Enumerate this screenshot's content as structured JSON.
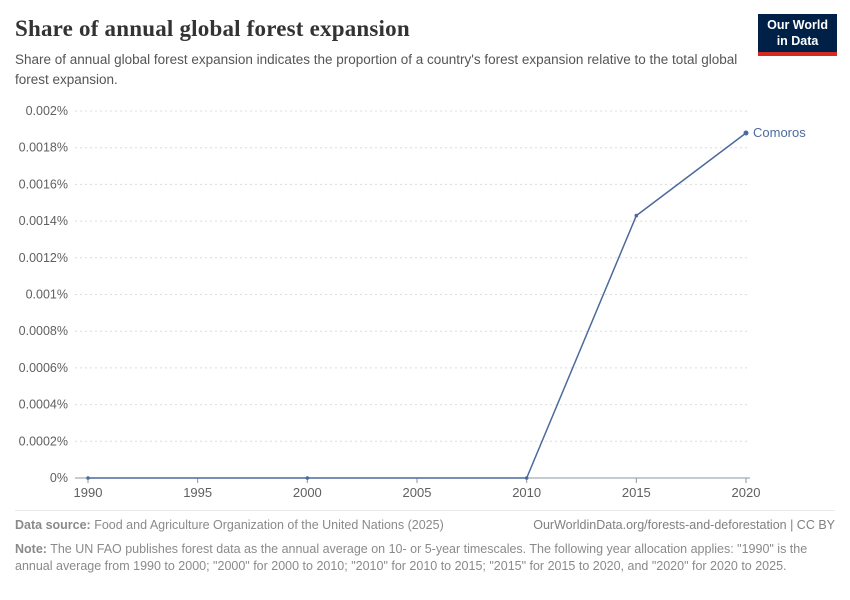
{
  "logo": {
    "line1": "Our World",
    "line2": "in Data",
    "navy_color": "#002147",
    "red_color": "#d42a20"
  },
  "header": {
    "title": "Share of annual global forest expansion",
    "subtitle": "Share of annual global forest expansion indicates the proportion of a country's forest expansion relative to the total global forest expansion."
  },
  "chart_data": {
    "type": "line",
    "title": "Share of annual global forest expansion",
    "xlabel": "",
    "ylabel": "",
    "xlim": [
      1990,
      2020
    ],
    "ylim": [
      0,
      0.002
    ],
    "grid": true,
    "grid_style": "dashed",
    "grid_color": "#dcdcdc",
    "axis_color": "#8b97a6",
    "legend_position": "end-of-line",
    "x_ticks": [
      1990,
      1995,
      2000,
      2005,
      2010,
      2015,
      2020
    ],
    "y_ticks": [
      {
        "value": 0,
        "label": "0%"
      },
      {
        "value": 0.0002,
        "label": "0.0002%"
      },
      {
        "value": 0.0004,
        "label": "0.0004%"
      },
      {
        "value": 0.0006,
        "label": "0.0006%"
      },
      {
        "value": 0.0008,
        "label": "0.0008%"
      },
      {
        "value": 0.001,
        "label": "0.001%"
      },
      {
        "value": 0.0012,
        "label": "0.0012%"
      },
      {
        "value": 0.0014,
        "label": "0.0014%"
      },
      {
        "value": 0.0016,
        "label": "0.0016%"
      },
      {
        "value": 0.0018,
        "label": "0.0018%"
      },
      {
        "value": 0.002,
        "label": "0.002%"
      }
    ],
    "series": [
      {
        "name": "Comoros",
        "color": "#4c6a9c",
        "x": [
          1990,
          2000,
          2010,
          2015,
          2020
        ],
        "values": [
          0,
          0,
          0,
          0.00143,
          0.00188
        ]
      }
    ]
  },
  "footer": {
    "datasource_label": "Data source:",
    "datasource_text": "Food and Agriculture Organization of the United Nations (2025)",
    "citation": "OurWorldinData.org/forests-and-deforestation | CC BY",
    "note_label": "Note:",
    "note_text": "The UN FAO publishes forest data as the annual average on 10- or 5-year timescales. The following year allocation applies: \"1990\" is the annual average from 1990 to 2000; \"2000\" for 2000 to 2010; \"2010\" for 2010 to 2015; \"2015\" for 2015 to 2020, and \"2020\" for 2020 to 2025."
  }
}
